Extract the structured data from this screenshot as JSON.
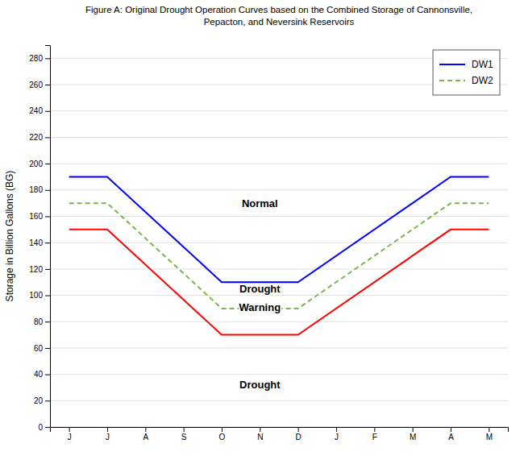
{
  "chart_data": {
    "type": "line",
    "title": "Figure A: Original Drought Operation Curves based on the Combined Storage of Cannonsville,\nPepacton, and Neversink Reservoirs",
    "ylabel": "Storage in Billion Gallons (BG)",
    "xlim": [
      -0.5,
      11.5
    ],
    "xticks": [
      {
        "value": 0,
        "label": "J"
      },
      {
        "value": 1,
        "label": "J"
      },
      {
        "value": 2,
        "label": "A"
      },
      {
        "value": 3,
        "label": "S"
      },
      {
        "value": 4,
        "label": "O"
      },
      {
        "value": 5,
        "label": "N"
      },
      {
        "value": 6,
        "label": "D"
      },
      {
        "value": 7,
        "label": "J"
      },
      {
        "value": 8,
        "label": "F"
      },
      {
        "value": 9,
        "label": "M"
      },
      {
        "value": 10,
        "label": "A"
      },
      {
        "value": 11,
        "label": "M"
      }
    ],
    "ylim": [
      0,
      290
    ],
    "yticks": [
      0,
      20,
      40,
      60,
      80,
      100,
      120,
      140,
      160,
      180,
      200,
      220,
      240,
      260,
      280
    ],
    "grid": "y",
    "legend": "upper right",
    "series": [
      {
        "name": "DW1",
        "color": "#0000FF",
        "line_style": "solid",
        "x": [
          0,
          1,
          4,
          5,
          6,
          10,
          11
        ],
        "values": [
          190,
          190,
          110,
          110,
          110,
          190,
          190
        ]
      },
      {
        "name": "DW2",
        "color": "#7AB648",
        "line_style": "dashed",
        "x": [
          0,
          1,
          4,
          5,
          6,
          10,
          11
        ],
        "values": [
          170,
          170,
          90,
          90,
          90,
          170,
          170
        ]
      },
      {
        "color": "#FF0000",
        "line_style": "solid",
        "x": [
          0,
          1,
          4,
          5,
          6,
          10,
          11
        ],
        "values": [
          150,
          150,
          70,
          70,
          70,
          150,
          150
        ]
      }
    ],
    "annotations": [
      {
        "text": "Normal",
        "x": 5.0,
        "y": 170
      },
      {
        "text": "Drought",
        "x": 5.0,
        "y": 105
      },
      {
        "text": "Warning",
        "x": 5.0,
        "y": 91
      },
      {
        "text": "Drought",
        "x": 5.0,
        "y": 32
      }
    ]
  }
}
